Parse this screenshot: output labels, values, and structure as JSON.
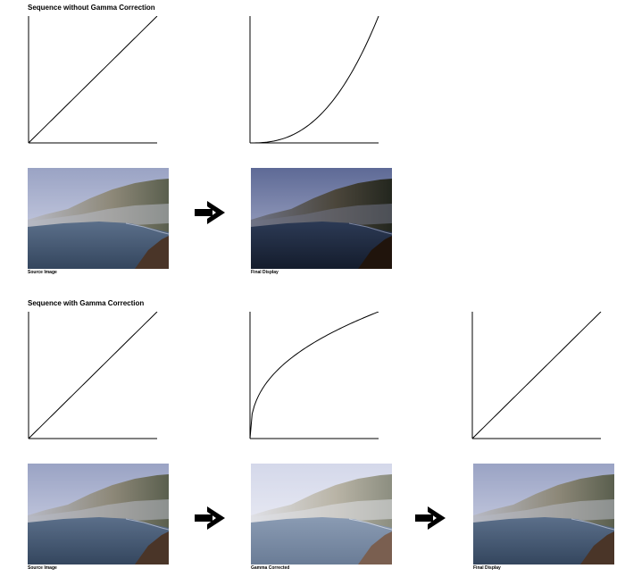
{
  "sections": [
    {
      "title": "Sequence without Gamma Correction",
      "stages": [
        {
          "caption": "",
          "curve": "linear",
          "tone": "normal"
        },
        {
          "caption": "",
          "curve": "power",
          "tone": "dark"
        }
      ],
      "captions": [
        "Source Image",
        "Final Display"
      ]
    },
    {
      "title": "Sequence with Gamma Correction",
      "captions": [
        "Source Image",
        "Gamma Corrected",
        "Final Display"
      ]
    }
  ],
  "curves": {
    "section1": [
      {
        "name": "linear",
        "exponent": 1
      },
      {
        "name": "power",
        "exponent": 2.5
      }
    ],
    "section2": [
      {
        "name": "linear",
        "exponent": 1
      },
      {
        "name": "root",
        "exponent": 0.4
      },
      {
        "name": "linear",
        "exponent": 1
      }
    ]
  },
  "photo_tones": {
    "section1": [
      "normal",
      "dark"
    ],
    "section2": [
      "normal",
      "light",
      "normal"
    ]
  },
  "arrow_icon": "right-arrow-icon"
}
